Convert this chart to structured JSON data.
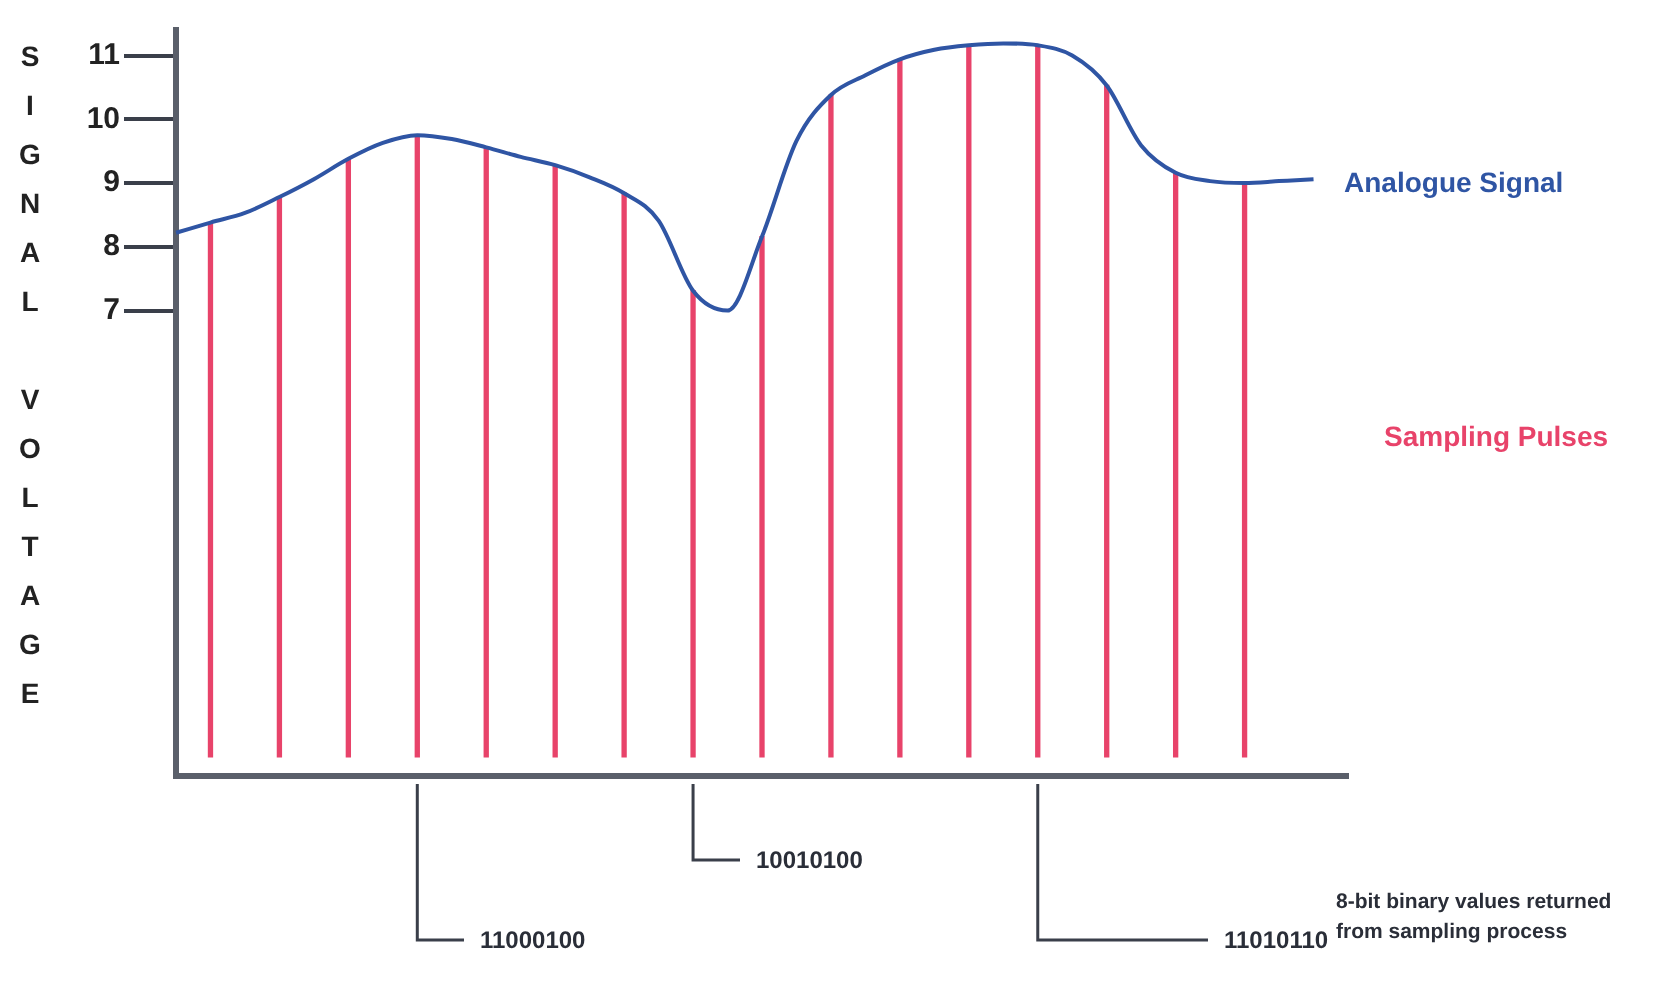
{
  "chart_data": {
    "type": "line",
    "ylabel": "SIGNAL VOLTAGE",
    "categories": [
      null,
      null,
      null,
      null,
      null,
      null,
      null,
      null,
      null,
      null,
      null,
      null,
      null,
      null,
      null,
      null,
      null,
      null,
      null,
      null,
      null,
      null,
      null,
      null,
      null,
      null,
      null,
      null,
      null,
      null,
      null,
      null,
      null,
      null,
      null
    ],
    "series": [
      {
        "name": "Analogue Signal",
        "color": "#2f55a4",
        "values": [
          8.22,
          8.38,
          8.53,
          8.78,
          9.06,
          9.38,
          9.63,
          9.75,
          9.69,
          9.56,
          9.41,
          9.28,
          9.09,
          8.84,
          8.41,
          7.31,
          7.0,
          8.16,
          9.66,
          10.38,
          10.69,
          10.94,
          11.09,
          11.16,
          11.19,
          11.16,
          11.0,
          10.53,
          9.59,
          9.16,
          9.03,
          9.0,
          9.03,
          9.06,
          null
        ]
      },
      {
        "name": "Sampling Pulses",
        "type": "bar",
        "color": "#e8436a",
        "values": [
          null,
          8.38,
          null,
          8.78,
          null,
          9.38,
          null,
          9.75,
          null,
          9.56,
          null,
          9.28,
          null,
          8.84,
          null,
          7.31,
          null,
          8.16,
          null,
          10.38,
          null,
          10.94,
          null,
          11.16,
          null,
          11.16,
          null,
          10.53,
          null,
          9.16,
          null,
          9.0,
          null,
          null,
          null
        ]
      }
    ],
    "ylim": [
      -0.3,
      11.4
    ],
    "yticks": [
      7,
      8,
      9,
      10,
      11
    ],
    "tick_labels": "y",
    "grid": false,
    "legend": false,
    "annotations": [
      "11000100",
      "10010100",
      "11010110",
      "8-bit binary values returned from sampling process"
    ]
  }
}
